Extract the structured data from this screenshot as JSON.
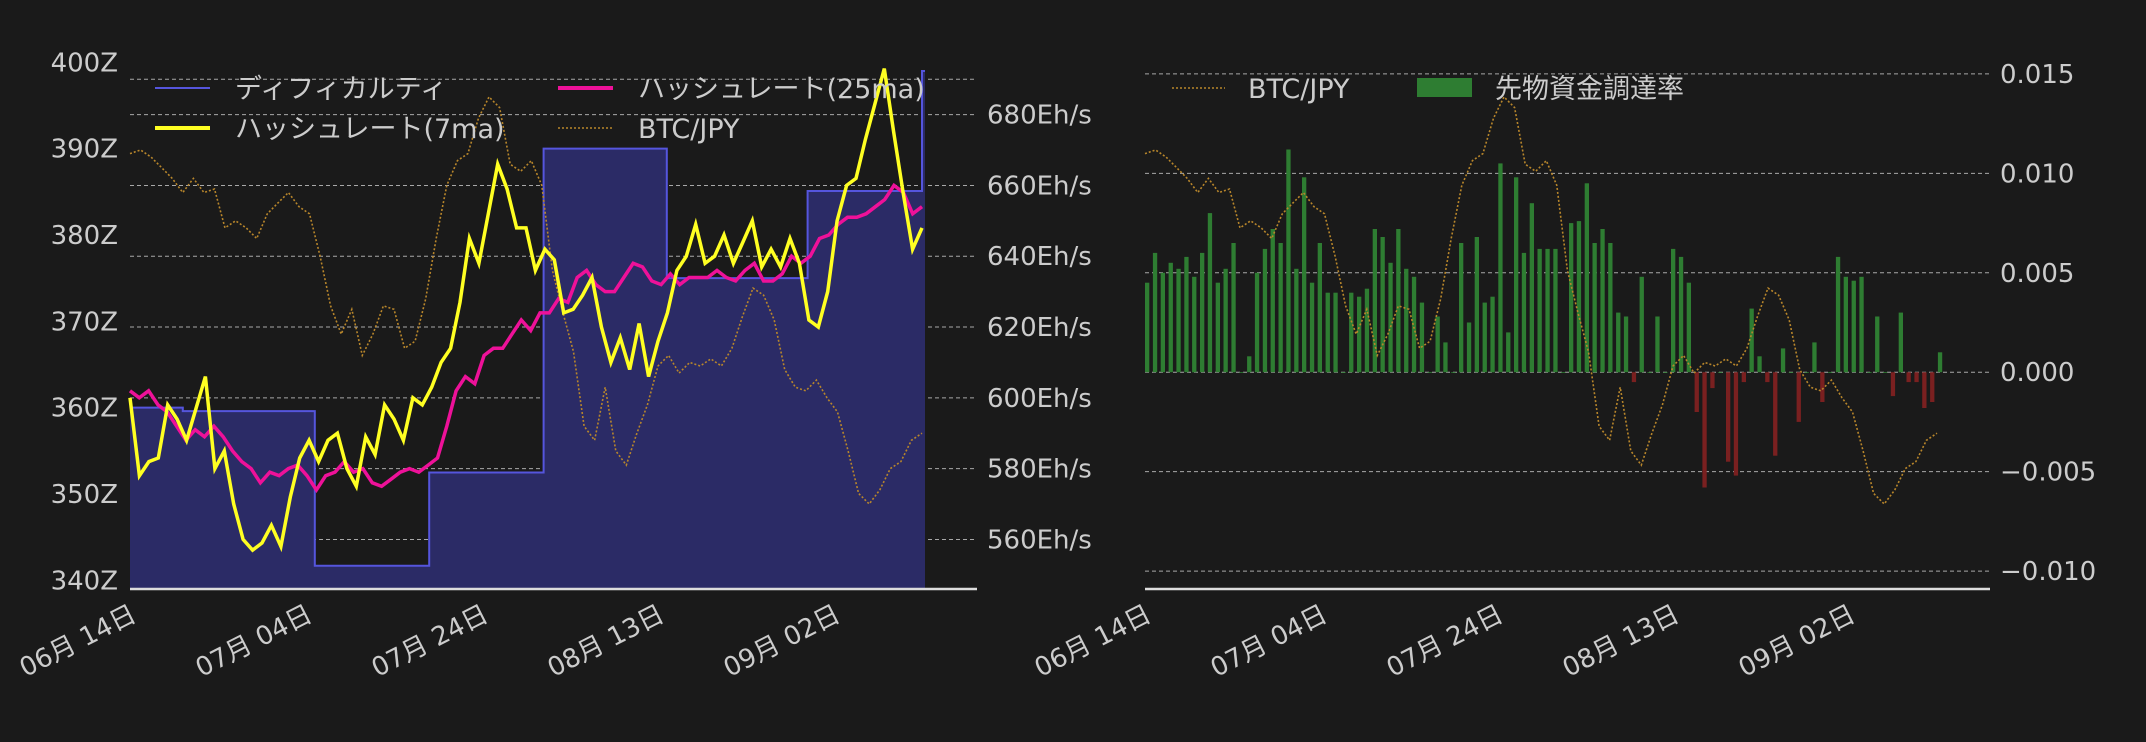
{
  "colors": {
    "background": "#1a1a1a",
    "difficulty_line": "#5555dd",
    "difficulty_fill": "#2b2b66",
    "hashrate_7ma": "#ffff22",
    "hashrate_25ma": "#ee1199",
    "btc_jpy": "#b8862b",
    "funding_positive": "#2e7d32",
    "funding_negative": "#7a2020",
    "grid": "#cccccc",
    "text": "#cccccc"
  },
  "chart_data": [
    {
      "type": "line",
      "title": "",
      "x_ticks": [
        "06月 14日",
        "07月 04日",
        "07月 24日",
        "08月 13日",
        "09月 02日"
      ],
      "left_axis": {
        "ylim": [
          339,
          400.5
        ],
        "ticks": [
          "340Z",
          "350Z",
          "360Z",
          "370Z",
          "380Z",
          "390Z",
          "400Z"
        ],
        "tick_values": [
          340,
          350,
          360,
          370,
          380,
          390,
          400
        ]
      },
      "right_axis": {
        "ylim": [
          546,
          696
        ],
        "ticks": [
          "560Eh/s",
          "580Eh/s",
          "600Eh/s",
          "620Eh/s",
          "640Eh/s",
          "660Eh/s",
          "680Eh/s"
        ],
        "tick_values": [
          560,
          580,
          600,
          620,
          640,
          660,
          680
        ]
      },
      "legend": [
        "ディフィカルティ",
        "ハッシュレート(25ma)",
        "ハッシュレート(7ma)",
        "BTC/JPY"
      ],
      "legend_position": "top",
      "grid": "horizontal dashed at right axis ticks",
      "series": [
        {
          "name": "ディフィカルティ",
          "axis": "left",
          "style": "step-filled",
          "points": [
            [
              0,
              360
            ],
            [
              6,
              359.6
            ],
            [
              20,
              359.6
            ],
            [
              21,
              341.7
            ],
            [
              33,
              341.7
            ],
            [
              34,
              352.5
            ],
            [
              46,
              352.5
            ],
            [
              47,
              390
            ],
            [
              60,
              390
            ],
            [
              61,
              375
            ],
            [
              76,
              375
            ],
            [
              77,
              385.1
            ],
            [
              89,
              385.1
            ],
            [
              90,
              399
            ]
          ]
        },
        {
          "name": "ハッシュレート(7ma)",
          "axis": "right",
          "values": [
            600,
            578,
            582,
            583,
            598,
            594,
            588,
            597,
            606,
            580,
            585,
            570,
            560,
            557,
            559,
            564,
            558,
            572,
            583,
            588,
            582,
            588,
            590,
            580,
            575,
            589,
            584,
            598,
            594,
            588,
            600,
            598,
            603,
            610,
            614,
            627,
            645,
            638,
            652,
            666,
            659,
            648,
            648,
            636,
            642,
            639,
            624,
            625,
            629,
            634,
            620,
            610,
            617,
            608,
            621,
            606,
            616,
            624,
            636,
            640,
            649,
            638,
            640,
            646,
            638,
            644,
            650,
            637,
            642,
            637,
            645,
            638,
            622,
            620,
            630,
            650,
            660,
            662,
            673,
            683,
            693,
            675,
            658,
            642,
            648
          ]
        },
        {
          "name": "ハッシュレート(25ma)",
          "axis": "right",
          "values": [
            602,
            600,
            602,
            598,
            596,
            592,
            588,
            591,
            589,
            592,
            589,
            585,
            582,
            580,
            576,
            579,
            578,
            580,
            581,
            578,
            574,
            578,
            579,
            582,
            579,
            580,
            576,
            575,
            577,
            579,
            580,
            579,
            581,
            583,
            592,
            602,
            606,
            604,
            612,
            614,
            614,
            618,
            622,
            619,
            624,
            624,
            628,
            627,
            634,
            636,
            632,
            630,
            630,
            634,
            638,
            637,
            633,
            632,
            635,
            632,
            634,
            634,
            634,
            636,
            634,
            633,
            636,
            638,
            633,
            633,
            635,
            640,
            638,
            640,
            645,
            646,
            649,
            651,
            651,
            652,
            654,
            656,
            660,
            658,
            652,
            654
          ]
        },
        {
          "name": "BTC/JPY",
          "axis": "right",
          "style": "dotted",
          "values": [
            669,
            670,
            668,
            665,
            662,
            658,
            662,
            658,
            659,
            648,
            650,
            648,
            645,
            652,
            655,
            658,
            654,
            652,
            640,
            626,
            618,
            625,
            612,
            618,
            626,
            625,
            614,
            616,
            628,
            645,
            660,
            667,
            669,
            679,
            685,
            682,
            666,
            664,
            667,
            660,
            636,
            624,
            613,
            592,
            588,
            603,
            585,
            581,
            590,
            598,
            609,
            612,
            607,
            610,
            609,
            611,
            609,
            614,
            623,
            631,
            629,
            622,
            608,
            603,
            602,
            605,
            600,
            596,
            585,
            573,
            570,
            574,
            580,
            582,
            588,
            590
          ]
        }
      ]
    },
    {
      "type": "bar",
      "title": "",
      "x_ticks": [
        "06月 14日",
        "07月 04日",
        "07月 24日",
        "08月 13日",
        "09月 02日"
      ],
      "right_axis": {
        "ylim": [
          -0.0109,
          0.0158
        ],
        "ticks": [
          "0.015",
          "0.010",
          "0.005",
          "0.000",
          "−0.005",
          "−0.010"
        ],
        "tick_values": [
          0.015,
          0.01,
          0.005,
          0.0,
          -0.005,
          -0.01
        ]
      },
      "legend": [
        "BTC/JPY",
        "先物資金調達率"
      ],
      "legend_position": "top-left",
      "grid": "horizontal dashed at tick values",
      "series": [
        {
          "name": "先物資金調達率",
          "axis": "right",
          "values": [
            0.0045,
            0.006,
            0.005,
            0.0055,
            0.0052,
            0.0058,
            0.0048,
            0.006,
            0.008,
            0.0045,
            0.0052,
            0.0065,
            0.0,
            0.0008,
            0.005,
            0.0062,
            0.0072,
            0.0065,
            0.0112,
            0.0052,
            0.0098,
            0.0045,
            0.0065,
            0.004,
            0.004,
            0.0,
            0.004,
            0.0038,
            0.0042,
            0.0072,
            0.0068,
            0.0055,
            0.0072,
            0.0052,
            0.0048,
            0.0035,
            0.0,
            0.0028,
            0.0015,
            0.0,
            0.0065,
            0.0025,
            0.0068,
            0.0035,
            0.0038,
            0.0105,
            0.002,
            0.0098,
            0.006,
            0.0085,
            0.0062,
            0.0062,
            0.0062,
            0.0,
            0.0075,
            0.0076,
            0.0095,
            0.0065,
            0.0072,
            0.0065,
            0.003,
            0.0028,
            -0.0005,
            0.0048,
            0.0,
            0.0028,
            0.0,
            0.0062,
            0.0058,
            0.0045,
            -0.002,
            -0.0058,
            -0.0008,
            0.0,
            -0.0045,
            -0.0052,
            -0.0005,
            0.0032,
            0.0008,
            -0.0005,
            -0.0042,
            0.0012,
            0.0,
            -0.0025,
            0.0,
            0.0015,
            -0.0015,
            0.0,
            0.0058,
            0.0048,
            0.0046,
            0.0048,
            0.0,
            0.0028,
            0.0,
            -0.0012,
            0.003,
            -0.0005,
            -0.0005,
            -0.0018,
            -0.0015,
            0.001
          ]
        },
        {
          "name": "BTC/JPY",
          "style": "dotted",
          "values": [
            669,
            670,
            668,
            665,
            662,
            658,
            662,
            658,
            659,
            648,
            650,
            648,
            645,
            652,
            655,
            658,
            654,
            652,
            640,
            626,
            618,
            625,
            612,
            618,
            626,
            625,
            614,
            616,
            628,
            645,
            660,
            667,
            669,
            679,
            685,
            682,
            666,
            664,
            667,
            660,
            636,
            624,
            613,
            592,
            588,
            603,
            585,
            581,
            590,
            598,
            609,
            612,
            607,
            610,
            609,
            611,
            609,
            614,
            623,
            631,
            629,
            622,
            608,
            603,
            602,
            605,
            600,
            596,
            585,
            573,
            570,
            574,
            580,
            582,
            588,
            590
          ]
        }
      ]
    }
  ]
}
